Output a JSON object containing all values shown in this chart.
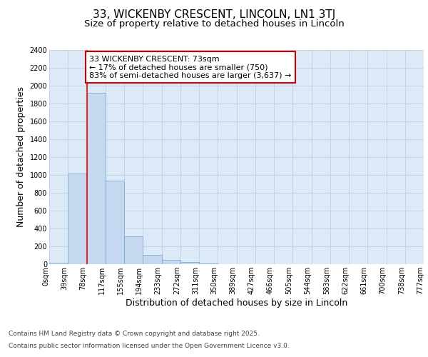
{
  "title_line1": "33, WICKENBY CRESCENT, LINCOLN, LN1 3TJ",
  "title_line2": "Size of property relative to detached houses in Lincoln",
  "xlabel": "Distribution of detached houses by size in Lincoln",
  "ylabel": "Number of detached properties",
  "bin_labels": [
    "0sqm",
    "39sqm",
    "78sqm",
    "117sqm",
    "155sqm",
    "194sqm",
    "233sqm",
    "272sqm",
    "311sqm",
    "350sqm",
    "389sqm",
    "427sqm",
    "466sqm",
    "505sqm",
    "544sqm",
    "583sqm",
    "622sqm",
    "661sqm",
    "700sqm",
    "738sqm",
    "777sqm"
  ],
  "bar_values": [
    15,
    1020,
    1920,
    940,
    310,
    105,
    50,
    25,
    10,
    3,
    0,
    0,
    0,
    0,
    0,
    0,
    0,
    0,
    0,
    0
  ],
  "bar_color": "#c5d8ef",
  "bar_edge_color": "#7aadd4",
  "grid_color": "#c0cfe0",
  "background_color": "#dce9f7",
  "red_line_x": 2.0,
  "annotation_text": "33 WICKENBY CRESCENT: 73sqm\n← 17% of detached houses are smaller (750)\n83% of semi-detached houses are larger (3,637) →",
  "annotation_box_color": "#ffffff",
  "annotation_border_color": "#cc0000",
  "ylim": [
    0,
    2400
  ],
  "yticks": [
    0,
    200,
    400,
    600,
    800,
    1000,
    1200,
    1400,
    1600,
    1800,
    2000,
    2200,
    2400
  ],
  "footer_line1": "Contains HM Land Registry data © Crown copyright and database right 2025.",
  "footer_line2": "Contains public sector information licensed under the Open Government Licence v3.0.",
  "title_fontsize": 11,
  "subtitle_fontsize": 9.5,
  "axis_label_fontsize": 9,
  "tick_fontsize": 7,
  "annotation_fontsize": 8,
  "footer_fontsize": 6.5
}
